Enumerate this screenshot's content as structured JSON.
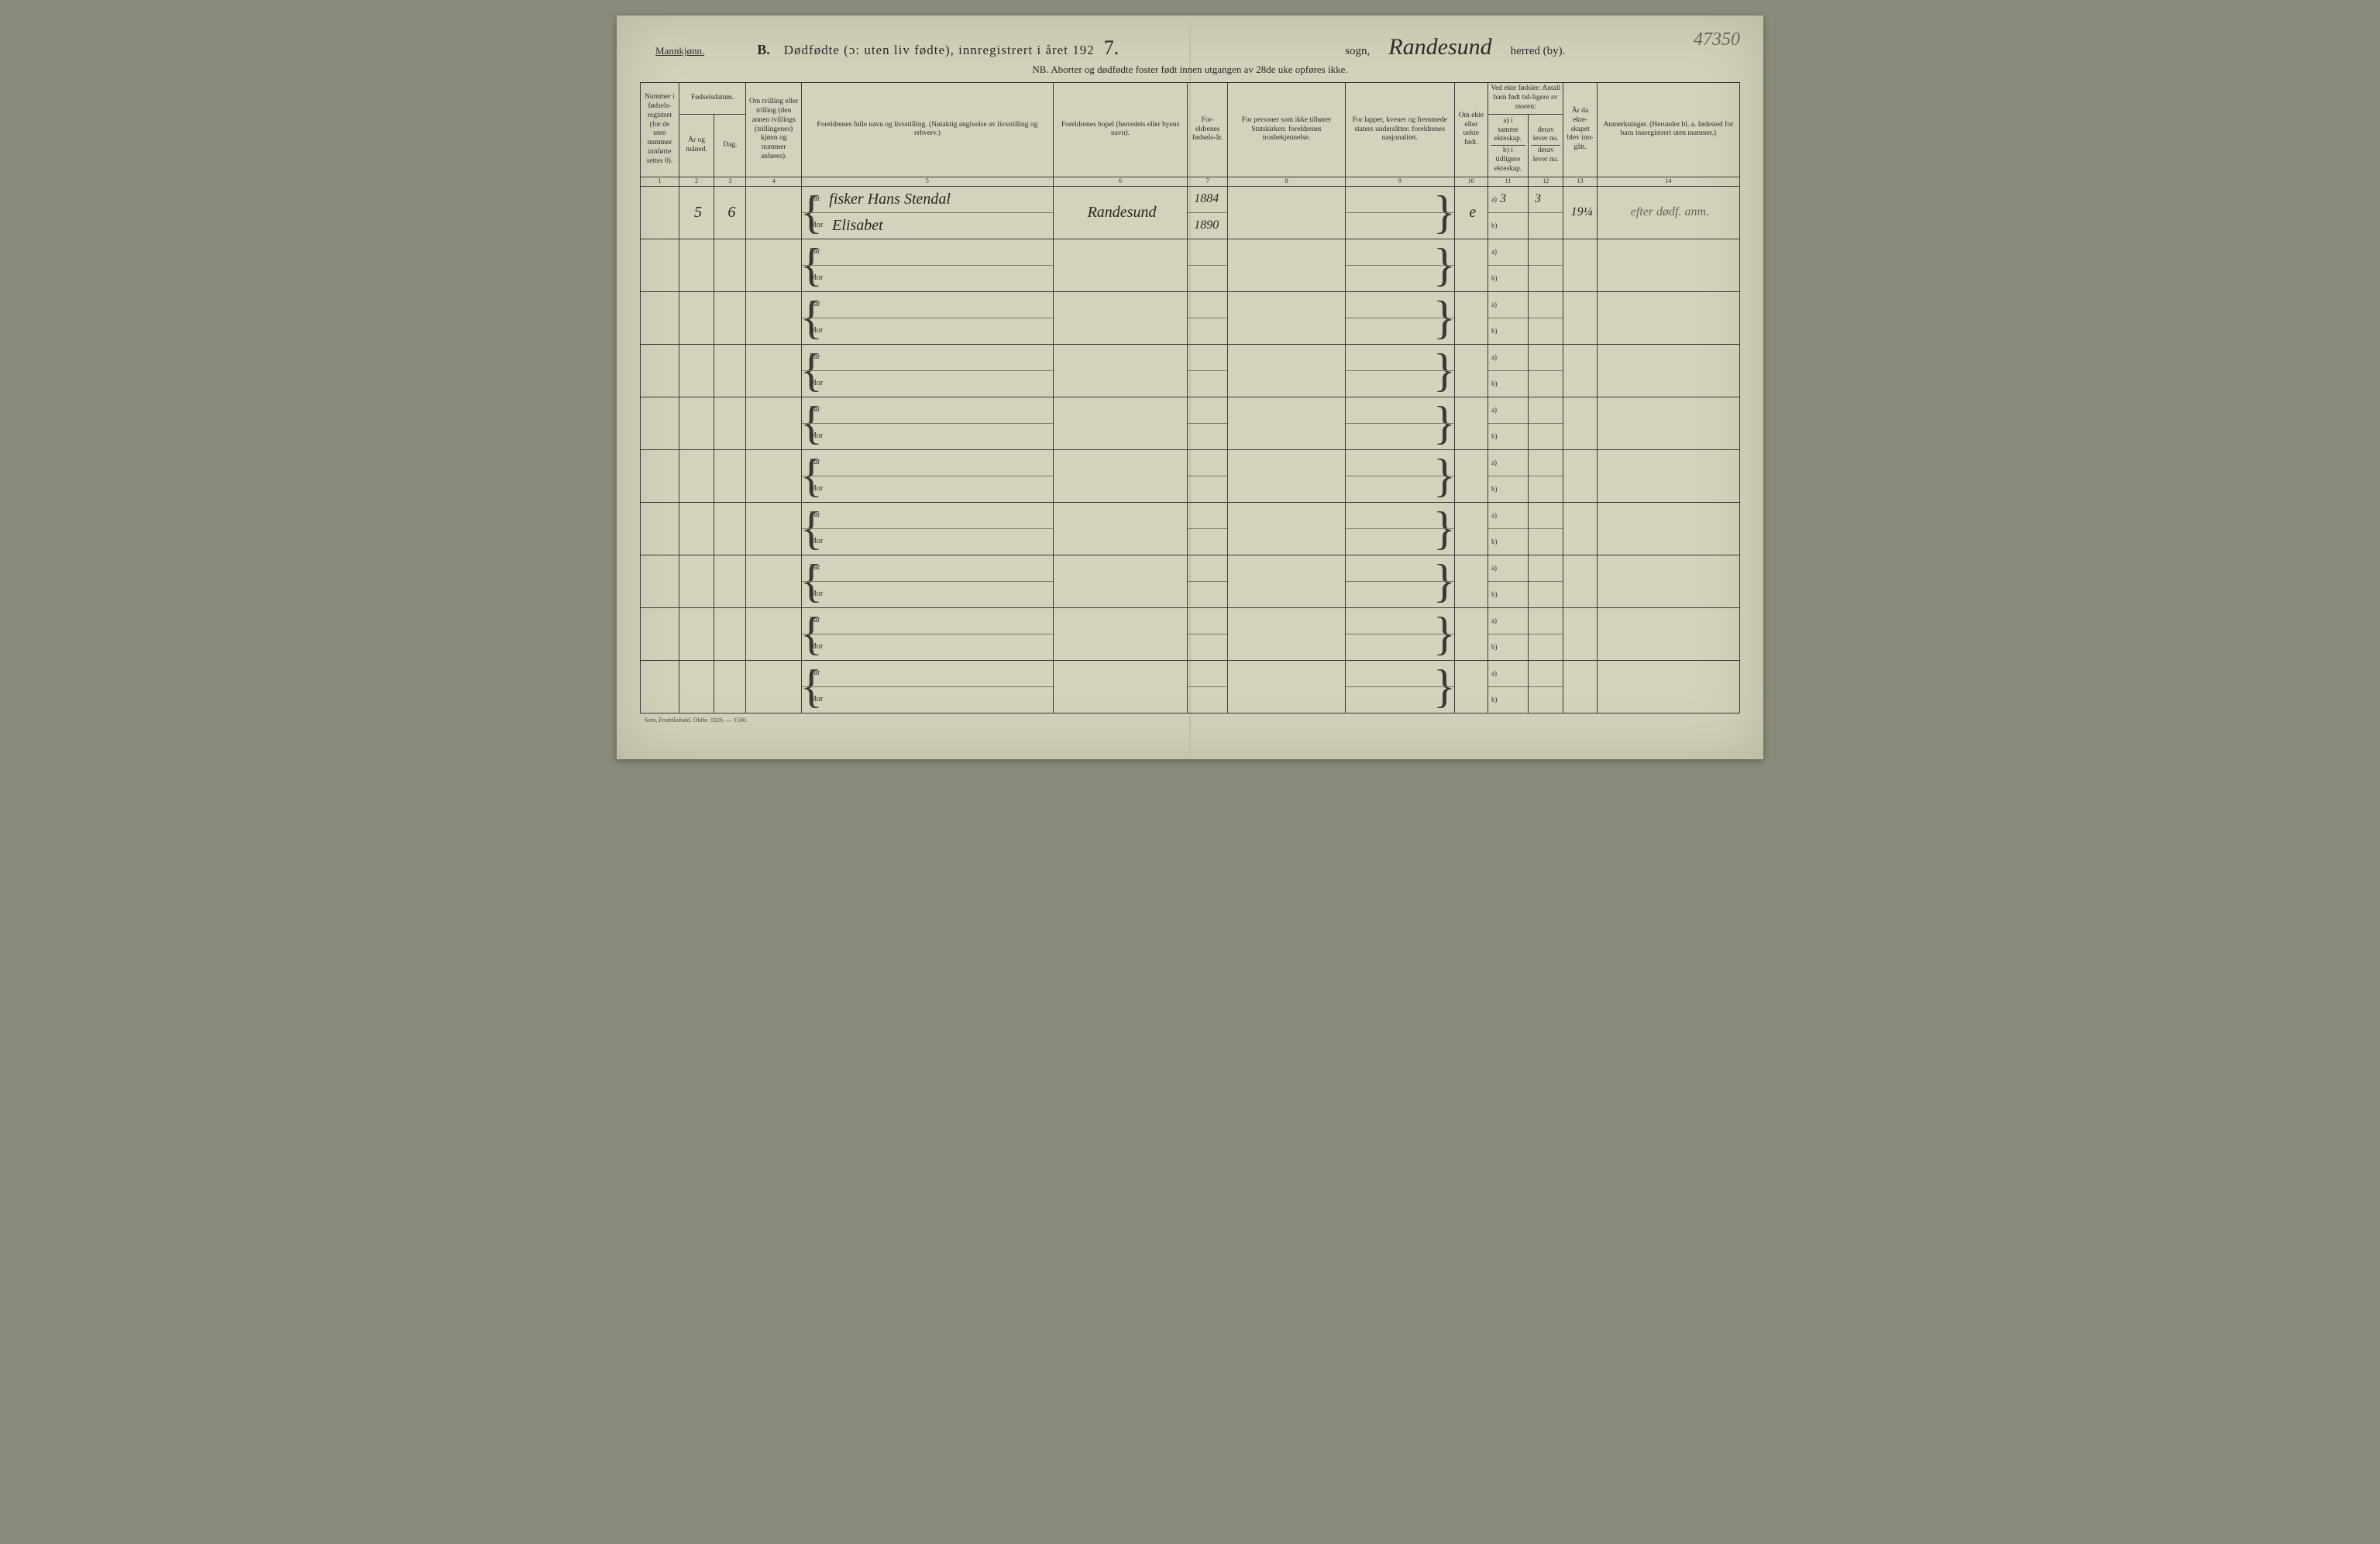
{
  "corner_number": "47350",
  "header": {
    "mannkjonn": "Mannkjønn.",
    "B": "B.",
    "title": "Dødfødte (ɔ: uten liv fødte), innregistrert i året 192",
    "year_suffix_hand": "7.",
    "sogn_label": "sogn,",
    "herred_hand": "Randesund",
    "herred_label": "herred (by).",
    "nb": "NB.  Aborter og dødfødte foster født innen utgangen av 28de uke opføres ikke."
  },
  "columns": {
    "c1": "Nummer i fødsels-registret (for de uten nummer innførte settes 0).",
    "c2_top": "Fødselsdatum.",
    "c2a": "År og måned.",
    "c2b": "Dag.",
    "c3": "Om tvilling eller trilling (den annen tvillings (trillingenes) kjønn og nummer anføres).",
    "c4": "Foreldrenes fulle navn og livsstilling. (Nøiaktig angivelse av livsstilling og erhverv.)",
    "c5": "Foreldrenes bopel (herredets eller byens navn).",
    "c6": "For-eldrenes fødsels-år.",
    "c7": "For personer som ikke tilhører Statskirken: foreldrenes trosbekjennelse.",
    "c8": "For lapper, kvener og fremmede staters undersåtter: foreldrenes nasjonalitet.",
    "c9": "Om ekte eller uekte født.",
    "c10_top": "Ved ekte fødsler: Antall barn født tid-ligere av moren:",
    "c10a": "a) i samme ekteskap.",
    "c10b": "b) i tidligere ekteskap.",
    "c10c": "derav lever nu.",
    "c10d": "derav lever nu.",
    "c11": "År da ekte-skapet blev inn-gått.",
    "c12": "Anmerkninger. (Herunder bl. a. fødested for barn innregistrert uten nummer.)"
  },
  "colnums": [
    "1",
    "2",
    "3",
    "4",
    "5",
    "6",
    "7",
    "8",
    "9",
    "10",
    "11",
    "12",
    "13",
    "14"
  ],
  "far_label": "Far",
  "mor_label": "Mor",
  "row1": {
    "num": "",
    "aar": "5",
    "dag": "6",
    "far_name": "fisker Hans Stendal",
    "mor_name": "Elisabet",
    "bopel": "Randesund",
    "far_aar": "1884",
    "mor_aar": "1890",
    "ekte": "e",
    "a_val": "3",
    "a_derav": "3",
    "ekteskap_aar": "19¼",
    "anm": "efter dødf. anm."
  },
  "footer": "Sem, Fredrikshald.  Oktbr. 1926. — 1500.",
  "colors": {
    "paper": "#d4d2bc",
    "ink": "#2a2a28",
    "border": "#3a3a34",
    "hand": "#28281f"
  },
  "num_rows": 10
}
